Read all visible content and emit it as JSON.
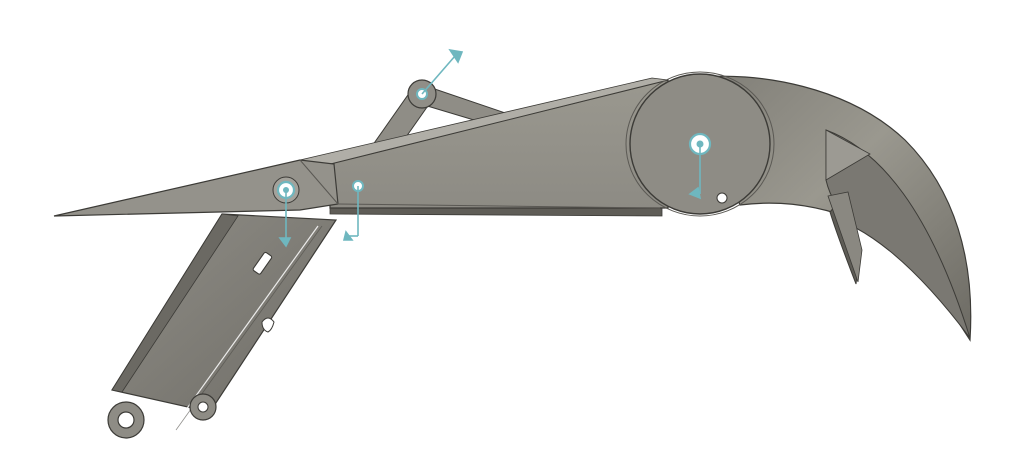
{
  "viewport": {
    "background": "#ffffff"
  },
  "model": {
    "colors": {
      "body_light": "#99978f",
      "body_mid": "#8f8d85",
      "body_dark": "#6f6d66",
      "edge": "#3c3b37",
      "highlight": "#b3b1aa",
      "joint_marker": "#6fb7bf"
    },
    "parts": [
      "finger-blade",
      "finger-body",
      "claw-tip",
      "knuckle-disc",
      "lower-link-arm",
      "upper-link",
      "pin-joints"
    ],
    "joint_markers_count": 4
  }
}
